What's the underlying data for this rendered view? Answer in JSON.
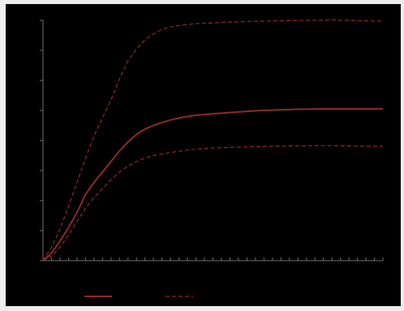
{
  "chart_data": {
    "type": "line",
    "title": "",
    "xlabel": "",
    "ylabel": "",
    "x": [
      0,
      1,
      2,
      3,
      4,
      5,
      6,
      7,
      8,
      9,
      10,
      11,
      12,
      13,
      14,
      15,
      16,
      17,
      18,
      19,
      20,
      21,
      22,
      23,
      24,
      25,
      26,
      27,
      28,
      29,
      30,
      31,
      32,
      33,
      34,
      35,
      36,
      37,
      38,
      39,
      40
    ],
    "xlim": [
      0,
      40
    ],
    "ylim": [
      0,
      8
    ],
    "grid": false,
    "legend": "bottom",
    "x_ticks": 41,
    "y_ticks": 9,
    "series": [
      {
        "style": "solid",
        "color": "#8b2a2a",
        "values": [
          0,
          0.25,
          0.65,
          1.1,
          1.6,
          2.2,
          2.6,
          2.95,
          3.3,
          3.65,
          3.95,
          4.2,
          4.38,
          4.5,
          4.6,
          4.68,
          4.75,
          4.8,
          4.84,
          4.86,
          4.89,
          4.91,
          4.93,
          4.95,
          4.97,
          4.99,
          5.0,
          5.01,
          5.02,
          5.03,
          5.04,
          5.04,
          5.05,
          5.05,
          5.05,
          5.05,
          5.05,
          5.05,
          5.05,
          5.05,
          5.05
        ]
      },
      {
        "style": "dashed",
        "color": "#8b2a2a",
        "values": [
          0,
          0.45,
          1.05,
          1.8,
          2.6,
          3.4,
          4.15,
          4.75,
          5.35,
          6.05,
          6.65,
          7.05,
          7.35,
          7.55,
          7.7,
          7.78,
          7.83,
          7.86,
          7.89,
          7.9,
          7.91,
          7.93,
          7.94,
          7.95,
          7.96,
          7.97,
          7.97,
          7.98,
          7.98,
          7.99,
          7.99,
          8.0,
          8.0,
          8.0,
          8.02,
          8.0,
          8.0,
          7.99,
          7.98,
          7.98,
          7.98
        ]
      },
      {
        "style": "dashed",
        "color": "#8b2a2a",
        "values": [
          0,
          0.15,
          0.45,
          0.85,
          1.3,
          1.75,
          2.1,
          2.4,
          2.7,
          2.95,
          3.15,
          3.3,
          3.42,
          3.5,
          3.55,
          3.6,
          3.64,
          3.68,
          3.71,
          3.73,
          3.75,
          3.76,
          3.77,
          3.78,
          3.79,
          3.8,
          3.8,
          3.81,
          3.81,
          3.82,
          3.82,
          3.82,
          3.83,
          3.83,
          3.83,
          3.82,
          3.82,
          3.81,
          3.81,
          3.81,
          3.81
        ]
      }
    ]
  },
  "colors": {
    "background": "#000000",
    "frame": "#ededed",
    "axis": "#6e6e6e",
    "series": "#8b2a2a"
  }
}
